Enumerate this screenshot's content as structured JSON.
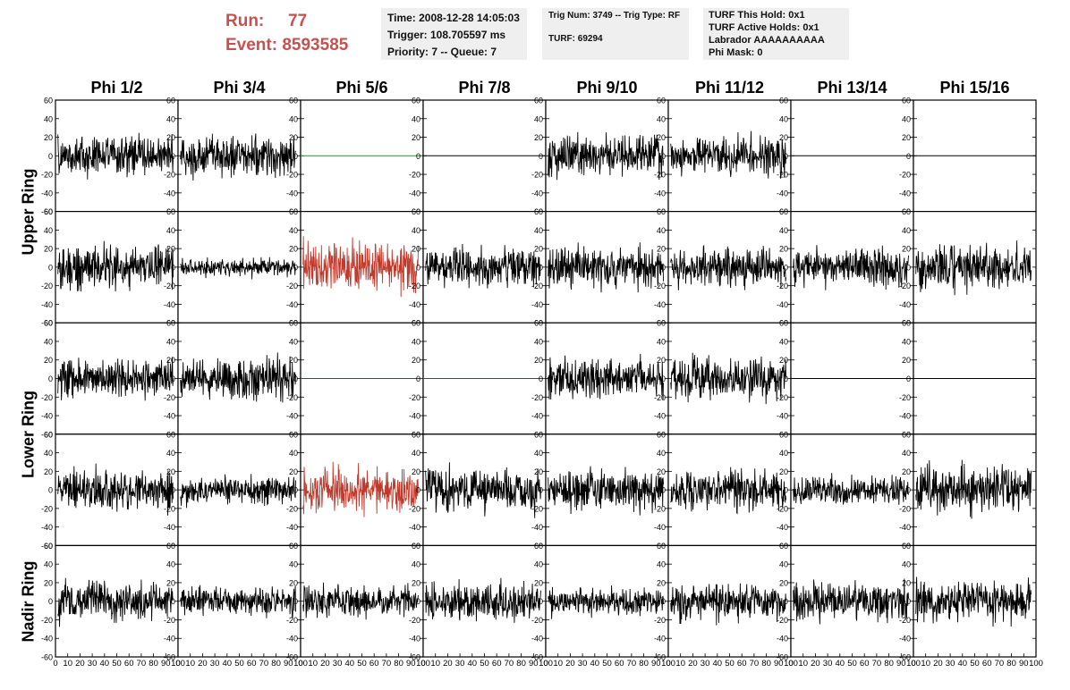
{
  "header": {
    "run_label": "Run:",
    "run_value": "77",
    "event_label": "Event:",
    "event_value": "8593585",
    "time_line": "Time: 2008-12-28 14:05:03",
    "trigger_line": "Trigger: 108.705597 ms",
    "priority_line": "Priority: 7 -- Queue: 7",
    "trig_line": "Trig Num: 3749 -- Trig Type: RF",
    "turf_line": "TURF: 69294",
    "turf_hold_line": "TURF This Hold: 0x1",
    "turf_active_line": "TURF Active Holds: 0x1",
    "labrador_line": "Labrador AAAAAAAAAA",
    "phi_mask_line": "Phi Mask: 0"
  },
  "columns": [
    "Phi 1/2",
    "Phi 3/4",
    "Phi 5/6",
    "Phi 7/8",
    "Phi 9/10",
    "Phi 11/12",
    "Phi 13/14",
    "Phi 15/16"
  ],
  "ring_labels": [
    {
      "label": "Upper Ring",
      "rows": [
        0,
        1
      ]
    },
    {
      "label": "Lower Ring",
      "rows": [
        2,
        3
      ]
    },
    {
      "label": "Nadir Ring",
      "rows": [
        4
      ]
    }
  ],
  "colors": {
    "run_text": "#c8504e",
    "trace_default": "#000000",
    "trace_triggered": "#c0392b",
    "trace_flat_green": "#3a8a3a",
    "trace_flat_blue": "#2a3fb0"
  },
  "chart_data": {
    "type": "line",
    "title": "",
    "xlabel": "",
    "ylabel": "",
    "xlim": [
      0,
      100
    ],
    "ylim": [
      -60,
      60
    ],
    "y_ticks": [
      -60,
      -40,
      -20,
      0,
      20,
      40,
      60
    ],
    "x_ticks": [
      0,
      10,
      20,
      30,
      40,
      50,
      60,
      70,
      80,
      90,
      100
    ],
    "grid": false,
    "legend": "none",
    "waveforms_note": "",
    "rows": [
      {
        "cells": [
          {
            "col": 0,
            "kind": "noise",
            "amplitude": 13,
            "color": "trace_default"
          },
          {
            "col": 1,
            "kind": "noise",
            "amplitude": 13,
            "color": "trace_default"
          },
          {
            "col": 2,
            "kind": "flat",
            "color": "trace_flat_green"
          },
          {
            "col": 3,
            "kind": "flat",
            "color": "trace_default"
          },
          {
            "col": 4,
            "kind": "noise",
            "amplitude": 13,
            "color": "trace_default"
          },
          {
            "col": 5,
            "kind": "noise",
            "amplitude": 12,
            "color": "trace_default"
          },
          {
            "col": 6,
            "kind": "flat",
            "color": "trace_default"
          },
          {
            "col": 7,
            "kind": "flat",
            "color": "trace_default"
          }
        ]
      },
      {
        "cells": [
          {
            "col": 0,
            "kind": "noise",
            "amplitude": 14,
            "color": "trace_default"
          },
          {
            "col": 1,
            "kind": "noise",
            "amplitude": 6,
            "color": "trace_default"
          },
          {
            "col": 2,
            "kind": "noise",
            "amplitude": 16,
            "color": "trace_triggered"
          },
          {
            "col": 3,
            "kind": "noise",
            "amplitude": 12,
            "color": "trace_default"
          },
          {
            "col": 4,
            "kind": "noise",
            "amplitude": 13,
            "color": "trace_default"
          },
          {
            "col": 5,
            "kind": "noise",
            "amplitude": 13,
            "color": "trace_default"
          },
          {
            "col": 6,
            "kind": "noise",
            "amplitude": 12,
            "color": "trace_default"
          },
          {
            "col": 7,
            "kind": "noise",
            "amplitude": 14,
            "color": "trace_default"
          }
        ]
      },
      {
        "cells": [
          {
            "col": 0,
            "kind": "noise",
            "amplitude": 13,
            "color": "trace_default"
          },
          {
            "col": 1,
            "kind": "noise",
            "amplitude": 13,
            "color": "trace_default"
          },
          {
            "col": 2,
            "kind": "flat",
            "color": "trace_flat_blue"
          },
          {
            "col": 3,
            "kind": "flat",
            "color": "trace_flat_blue"
          },
          {
            "col": 4,
            "kind": "noise",
            "amplitude": 13,
            "color": "trace_default"
          },
          {
            "col": 5,
            "kind": "noise",
            "amplitude": 13,
            "color": "trace_default"
          },
          {
            "col": 6,
            "kind": "flat",
            "color": "trace_default"
          },
          {
            "col": 7,
            "kind": "flat",
            "color": "trace_default"
          }
        ]
      },
      {
        "cells": [
          {
            "col": 0,
            "kind": "noise",
            "amplitude": 13,
            "color": "trace_default"
          },
          {
            "col": 1,
            "kind": "noise",
            "amplitude": 9,
            "color": "trace_default"
          },
          {
            "col": 2,
            "kind": "noise",
            "amplitude": 15,
            "color": "trace_triggered"
          },
          {
            "col": 3,
            "kind": "noise",
            "amplitude": 14,
            "color": "trace_default"
          },
          {
            "col": 4,
            "kind": "noise",
            "amplitude": 13,
            "color": "trace_default"
          },
          {
            "col": 5,
            "kind": "noise",
            "amplitude": 13,
            "color": "trace_default"
          },
          {
            "col": 6,
            "kind": "noise",
            "amplitude": 10,
            "color": "trace_default"
          },
          {
            "col": 7,
            "kind": "noise",
            "amplitude": 15,
            "color": "trace_default"
          }
        ]
      },
      {
        "cells": [
          {
            "col": 0,
            "kind": "noise",
            "amplitude": 13,
            "color": "trace_default"
          },
          {
            "col": 1,
            "kind": "noise",
            "amplitude": 9,
            "color": "trace_default"
          },
          {
            "col": 2,
            "kind": "noise",
            "amplitude": 10,
            "color": "trace_default"
          },
          {
            "col": 3,
            "kind": "noise",
            "amplitude": 12,
            "color": "trace_default"
          },
          {
            "col": 4,
            "kind": "noise",
            "amplitude": 9,
            "color": "trace_default"
          },
          {
            "col": 5,
            "kind": "noise",
            "amplitude": 12,
            "color": "trace_default"
          },
          {
            "col": 6,
            "kind": "noise",
            "amplitude": 12,
            "color": "trace_default"
          },
          {
            "col": 7,
            "kind": "noise",
            "amplitude": 13,
            "color": "trace_default"
          }
        ]
      }
    ]
  }
}
